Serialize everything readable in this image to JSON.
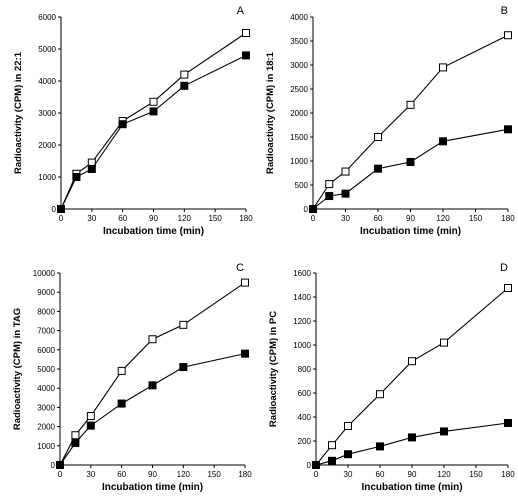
{
  "chart_data": [
    {
      "type": "line",
      "panel_label": "A",
      "xlabel": "Incubation time (min)",
      "ylabel": "Radioactivity (CPM) in 22:1",
      "x": [
        0,
        15,
        30,
        60,
        90,
        120,
        180
      ],
      "xticks": [
        0,
        30,
        60,
        90,
        120,
        150,
        180
      ],
      "xlim": [
        0,
        180
      ],
      "ylim": [
        0,
        6000
      ],
      "yticks": [
        0,
        1000,
        2000,
        3000,
        4000,
        5000,
        6000
      ],
      "series": [
        {
          "marker": "open-square",
          "values": [
            0,
            1100,
            1450,
            2750,
            3350,
            4200,
            5500
          ]
        },
        {
          "marker": "filled-square",
          "values": [
            0,
            1000,
            1250,
            2650,
            3050,
            3850,
            4800
          ]
        }
      ]
    },
    {
      "type": "line",
      "panel_label": "B",
      "xlabel": "Incubation time (min)",
      "ylabel": "Radioactivity (CPM) in 18:1",
      "x": [
        0,
        15,
        30,
        60,
        90,
        120,
        180
      ],
      "xticks": [
        0,
        30,
        60,
        90,
        120,
        150,
        180
      ],
      "xlim": [
        0,
        180
      ],
      "ylim": [
        0,
        4000
      ],
      "yticks": [
        0,
        500,
        1000,
        1500,
        2000,
        2500,
        3000,
        3500,
        4000
      ],
      "series": [
        {
          "marker": "open-square",
          "values": [
            0,
            520,
            780,
            1500,
            2170,
            2950,
            3620
          ]
        },
        {
          "marker": "filled-square",
          "values": [
            0,
            270,
            320,
            840,
            980,
            1410,
            1660
          ]
        }
      ]
    },
    {
      "type": "line",
      "panel_label": "C",
      "xlabel": "Incubation time (min)",
      "ylabel": "Radioactivity (CPM) in TAG",
      "x": [
        0,
        15,
        30,
        60,
        90,
        120,
        180
      ],
      "xticks": [
        0,
        30,
        60,
        90,
        120,
        150,
        180
      ],
      "xlim": [
        0,
        180
      ],
      "ylim": [
        0,
        10000
      ],
      "yticks": [
        0,
        1000,
        2000,
        3000,
        4000,
        5000,
        6000,
        7000,
        8000,
        9000,
        10000
      ],
      "series": [
        {
          "marker": "open-square",
          "values": [
            0,
            1550,
            2550,
            4900,
            6550,
            7300,
            9500
          ]
        },
        {
          "marker": "filled-square",
          "values": [
            0,
            1150,
            2050,
            3200,
            4150,
            5100,
            5800
          ]
        }
      ]
    },
    {
      "type": "line",
      "panel_label": "D",
      "xlabel": "Incubation time (min)",
      "ylabel": "Radioactivity (CPM) in PC",
      "x": [
        0,
        15,
        30,
        60,
        90,
        120,
        180
      ],
      "xticks": [
        0,
        30,
        60,
        90,
        120,
        150,
        180
      ],
      "xlim": [
        0,
        180
      ],
      "ylim": [
        0,
        1600
      ],
      "yticks": [
        0,
        200,
        400,
        600,
        800,
        1000,
        1200,
        1400,
        1600
      ],
      "series": [
        {
          "marker": "open-square",
          "values": [
            0,
            165,
            325,
            590,
            865,
            1020,
            1475
          ]
        },
        {
          "marker": "filled-square",
          "values": [
            0,
            35,
            90,
            155,
            230,
            280,
            350
          ]
        }
      ]
    }
  ]
}
